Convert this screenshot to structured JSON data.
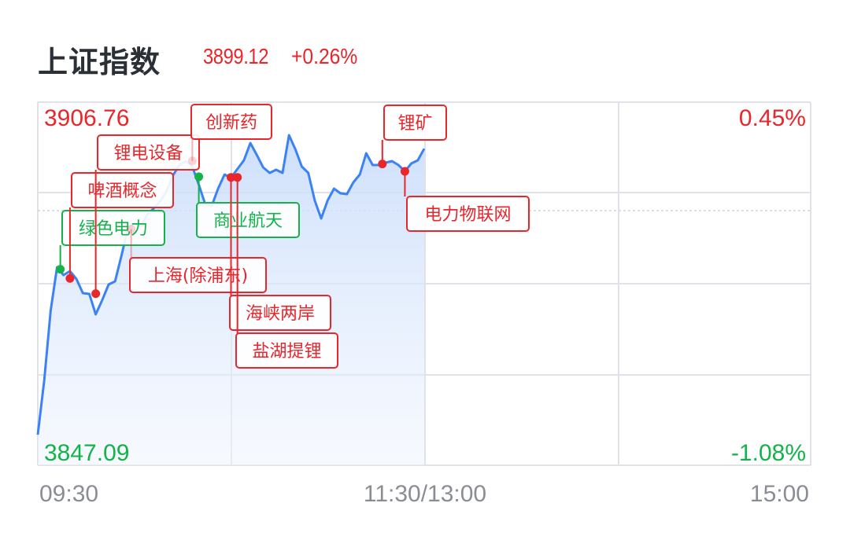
{
  "header": {
    "title": "上证指数",
    "price": "3899.12",
    "change_pct": "+0.26%"
  },
  "colors": {
    "up": "#e8262b",
    "down": "#13b24b",
    "line": "#3c82f6",
    "grid": "#dfe2e8",
    "axis_text": "#8a8d93",
    "title": "#2b2f36"
  },
  "chart_data": {
    "type": "line",
    "title": "",
    "y_left_labels": {
      "max": "3906.76",
      "min": "3847.09"
    },
    "y_right_labels": {
      "max": "0.45%",
      "min": "-1.08%"
    },
    "ylim": [
      3847.09,
      3906.76
    ],
    "x_tick_labels": [
      "09:30",
      "11:30/13:00",
      "15:00"
    ],
    "grid": true,
    "series": [
      {
        "x": [
          "09:30",
          "09:32",
          "09:34",
          "09:36",
          "09:38",
          "09:40",
          "09:42",
          "09:44",
          "09:46",
          "09:48",
          "09:50",
          "09:52",
          "09:54",
          "09:56",
          "09:58",
          "10:00",
          "10:02",
          "10:04",
          "10:06",
          "10:08",
          "10:10",
          "10:12",
          "10:14",
          "10:16",
          "10:18",
          "10:20",
          "10:22",
          "10:24",
          "10:26",
          "10:28",
          "10:30",
          "10:32",
          "10:34",
          "10:36",
          "10:38",
          "10:40",
          "10:42",
          "10:44",
          "10:46",
          "10:48",
          "10:50",
          "10:52",
          "10:54",
          "10:56",
          "10:58",
          "11:00",
          "11:02",
          "11:04",
          "11:06",
          "11:08",
          "11:10",
          "11:12",
          "11:14",
          "11:16",
          "11:18",
          "11:20",
          "11:22",
          "11:24",
          "11:26",
          "11:28",
          "11:30"
        ],
        "values": [
          3852.12,
          3861.04,
          3872.53,
          3879.64,
          3878.34,
          3878.99,
          3877.7,
          3875.37,
          3875.24,
          3871.89,
          3874.21,
          3876.79,
          3877.31,
          3881.57,
          3886.09,
          3886.87,
          3886.35,
          3888.29,
          3889.32,
          3890.49,
          3892.16,
          3894.75,
          3896.43,
          3897.07,
          3896.17,
          3893.2,
          3889.97,
          3889.71,
          3892.55,
          3894.88,
          3894.36,
          3895.78,
          3897.2,
          3900.04,
          3898.11,
          3896.04,
          3895.14,
          3895.65,
          3895.14,
          3901.34,
          3899.01,
          3896.17,
          3895.14,
          3890.61,
          3887.64,
          3890.61,
          3892.55,
          3891.78,
          3891.65,
          3893.59,
          3894.88,
          3898.36,
          3896.43,
          3896.43,
          3896.81,
          3897.07,
          3896.43,
          3895.39,
          3896.69,
          3897.2,
          3899.12
        ]
      }
    ],
    "annotations": [
      {
        "label": "绿色电力",
        "time": "09:37",
        "value": 3879.3,
        "color": "down"
      },
      {
        "label": "啤酒概念",
        "time": "09:40",
        "value": 3877.8,
        "color": "up"
      },
      {
        "label": "锂电设备",
        "time": "09:48",
        "value": 3875.3,
        "color": "up"
      },
      {
        "label": "上海(除浦东)",
        "time": "09:59",
        "value": 3885.9,
        "color": "up",
        "faded": true
      },
      {
        "label": "创新药",
        "time": "10:18",
        "value": 3897.1,
        "color": "up",
        "faded": true
      },
      {
        "label": "商业航天",
        "time": "10:20",
        "value": 3894.5,
        "color": "down"
      },
      {
        "label": "海峡两岸",
        "time": "10:30",
        "value": 3894.4,
        "color": "up"
      },
      {
        "label": "盐湖提锂",
        "time": "10:32",
        "value": 3894.4,
        "color": "up"
      },
      {
        "label": "锂矿",
        "time": "11:17",
        "value": 3896.6,
        "color": "up"
      },
      {
        "label": "电力物联网",
        "time": "11:24",
        "value": 3895.4,
        "color": "up"
      }
    ]
  }
}
